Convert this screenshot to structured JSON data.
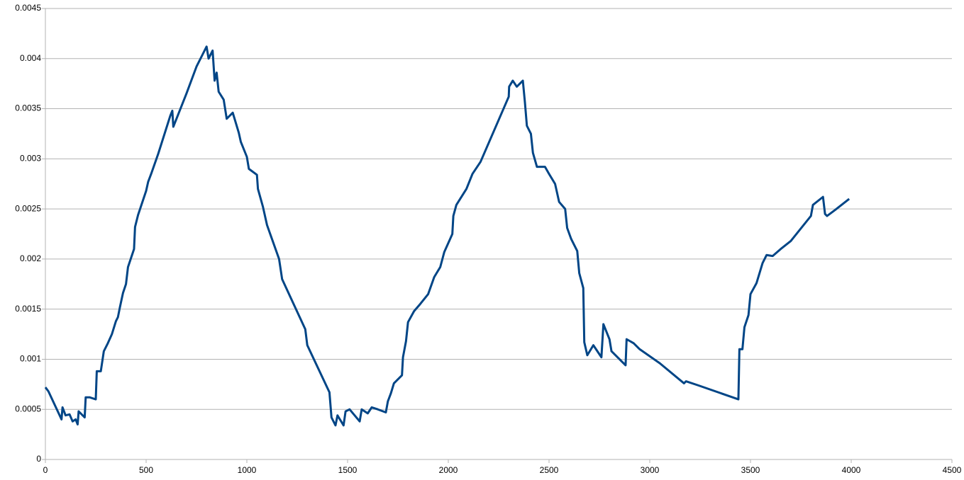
{
  "chart_data": {
    "type": "line",
    "x": [
      0,
      15,
      80,
      85,
      100,
      120,
      135,
      150,
      160,
      165,
      195,
      200,
      220,
      250,
      255,
      275,
      290,
      310,
      330,
      350,
      360,
      370,
      385,
      400,
      410,
      440,
      445,
      460,
      500,
      510,
      525,
      560,
      620,
      630,
      635,
      700,
      750,
      780,
      800,
      810,
      830,
      840,
      850,
      860,
      885,
      900,
      930,
      960,
      970,
      1000,
      1010,
      1050,
      1055,
      1080,
      1100,
      1160,
      1175,
      1230,
      1290,
      1300,
      1410,
      1420,
      1440,
      1450,
      1480,
      1490,
      1510,
      1560,
      1570,
      1600,
      1620,
      1650,
      1690,
      1700,
      1715,
      1730,
      1770,
      1775,
      1790,
      1800,
      1830,
      1860,
      1900,
      1930,
      1960,
      1980,
      2020,
      2025,
      2040,
      2090,
      2120,
      2160,
      2300,
      2302,
      2320,
      2340,
      2370,
      2380,
      2390,
      2410,
      2420,
      2440,
      2480,
      2500,
      2530,
      2550,
      2580,
      2590,
      2610,
      2640,
      2650,
      2670,
      2675,
      2690,
      2720,
      2760,
      2770,
      2800,
      2810,
      2860,
      2880,
      2885,
      2920,
      2950,
      3050,
      3170,
      3180,
      3240,
      3440,
      3445,
      3460,
      3470,
      3490,
      3500,
      3530,
      3560,
      3580,
      3610,
      3650,
      3700,
      3800,
      3810,
      3860,
      3870,
      3880,
      3920,
      3990
    ],
    "series": [
      {
        "color": "#004586",
        "values": [
          0.00072,
          0.00068,
          0.0004,
          0.00052,
          0.00044,
          0.00045,
          0.00038,
          0.0004,
          0.00035,
          0.00048,
          0.00042,
          0.00062,
          0.00062,
          0.0006,
          0.00088,
          0.00088,
          0.00108,
          0.00116,
          0.00125,
          0.00138,
          0.00142,
          0.00152,
          0.00166,
          0.00175,
          0.00192,
          0.0021,
          0.00232,
          0.00244,
          0.00268,
          0.00277,
          0.00285,
          0.00305,
          0.00343,
          0.00348,
          0.00332,
          0.00365,
          0.00392,
          0.00404,
          0.00412,
          0.004,
          0.00408,
          0.00378,
          0.00386,
          0.00367,
          0.00359,
          0.0034,
          0.00346,
          0.00326,
          0.00317,
          0.00302,
          0.0029,
          0.00284,
          0.0027,
          0.00252,
          0.00234,
          0.002,
          0.0018,
          0.00156,
          0.0013,
          0.00114,
          0.00067,
          0.00042,
          0.00034,
          0.00044,
          0.00034,
          0.00048,
          0.0005,
          0.00038,
          0.0005,
          0.00046,
          0.00052,
          0.0005,
          0.00047,
          0.00058,
          0.00066,
          0.00076,
          0.00084,
          0.00102,
          0.00118,
          0.00137,
          0.00148,
          0.00155,
          0.00165,
          0.00182,
          0.00192,
          0.00207,
          0.00225,
          0.00243,
          0.00254,
          0.0027,
          0.00285,
          0.00297,
          0.00362,
          0.00372,
          0.00378,
          0.00372,
          0.00378,
          0.00357,
          0.00333,
          0.00325,
          0.00306,
          0.00292,
          0.00292,
          0.00285,
          0.00275,
          0.00257,
          0.0025,
          0.00231,
          0.0022,
          0.00208,
          0.00186,
          0.00171,
          0.00117,
          0.00104,
          0.00114,
          0.00102,
          0.00135,
          0.0012,
          0.00108,
          0.00098,
          0.00094,
          0.0012,
          0.00116,
          0.0011,
          0.00096,
          0.00076,
          0.00078,
          0.00074,
          0.0006,
          0.0011,
          0.0011,
          0.00132,
          0.00144,
          0.00165,
          0.00176,
          0.00196,
          0.00204,
          0.00203,
          0.0021,
          0.00218,
          0.00243,
          0.00254,
          0.00262,
          0.00245,
          0.00243,
          0.00249,
          0.0026
        ]
      }
    ],
    "xlim": [
      0,
      4500
    ],
    "xticks": [
      0,
      500,
      1000,
      1500,
      2000,
      2500,
      3000,
      3500,
      4000,
      4500
    ],
    "ylim": [
      0,
      0.0045
    ],
    "yticks": [
      0,
      0.0005,
      0.001,
      0.0015,
      0.002,
      0.0025,
      0.003,
      0.0035,
      0.004,
      0.0045
    ],
    "grid": true
  }
}
